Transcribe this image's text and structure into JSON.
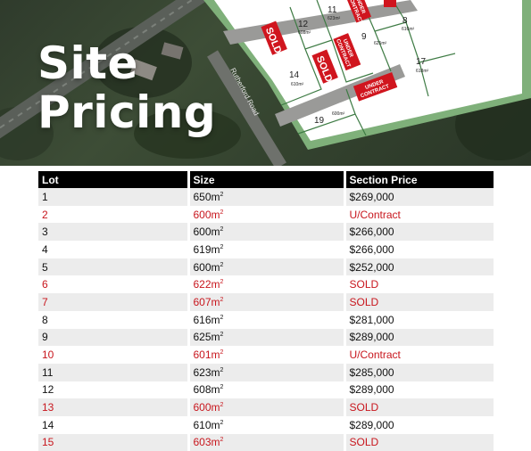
{
  "hero": {
    "title_line1": "Site",
    "title_line2": "Pricing",
    "road_label": "Rutherford Road",
    "map_lots": [
      {
        "lot": "12",
        "size": "608m²"
      },
      {
        "lot": "11",
        "size": "623m²"
      },
      {
        "lot": "8",
        "size": "616m²"
      },
      {
        "lot": "9",
        "size": "625m²"
      },
      {
        "lot": "14",
        "size": "610m²"
      },
      {
        "lot": "17",
        "size": "618m²"
      },
      {
        "lot": "19",
        "size": "600m²"
      }
    ],
    "badges": {
      "sold": "SOLD",
      "under_contract_line1": "UNDER",
      "under_contract_line2": "CONTRACT"
    }
  },
  "table": {
    "headers": [
      "Lot",
      "Size",
      "Section Price"
    ],
    "rows": [
      {
        "lot": "1",
        "size": "650m",
        "price": "$269,000",
        "status": "available"
      },
      {
        "lot": "2",
        "size": "600m",
        "price": "U/Contract",
        "status": "contract"
      },
      {
        "lot": "3",
        "size": "600m",
        "price": "$266,000",
        "status": "available"
      },
      {
        "lot": "4",
        "size": "619m",
        "price": "$266,000",
        "status": "available"
      },
      {
        "lot": "5",
        "size": "600m",
        "price": "$252,000",
        "status": "available"
      },
      {
        "lot": "6",
        "size": "622m",
        "price": "SOLD",
        "status": "sold"
      },
      {
        "lot": "7",
        "size": "607m",
        "price": "SOLD",
        "status": "sold"
      },
      {
        "lot": "8",
        "size": "616m",
        "price": "$281,000",
        "status": "available"
      },
      {
        "lot": "9",
        "size": "625m",
        "price": "$289,000",
        "status": "available"
      },
      {
        "lot": "10",
        "size": "601m",
        "price": "U/Contract",
        "status": "contract"
      },
      {
        "lot": "11",
        "size": "623m",
        "price": "$285,000",
        "status": "available"
      },
      {
        "lot": "12",
        "size": "608m",
        "price": "$289,000",
        "status": "available"
      },
      {
        "lot": "13",
        "size": "600m",
        "price": "SOLD",
        "status": "sold"
      },
      {
        "lot": "14",
        "size": "610m",
        "price": "$289,000",
        "status": "available"
      },
      {
        "lot": "15",
        "size": "603m",
        "price": "SOLD",
        "status": "sold"
      }
    ],
    "size_unit_sup": "2"
  },
  "colors": {
    "header_bg": "#000000",
    "unavailable_text": "#c8161d",
    "badge_red": "#d0151e",
    "stripe": "#ececec"
  }
}
